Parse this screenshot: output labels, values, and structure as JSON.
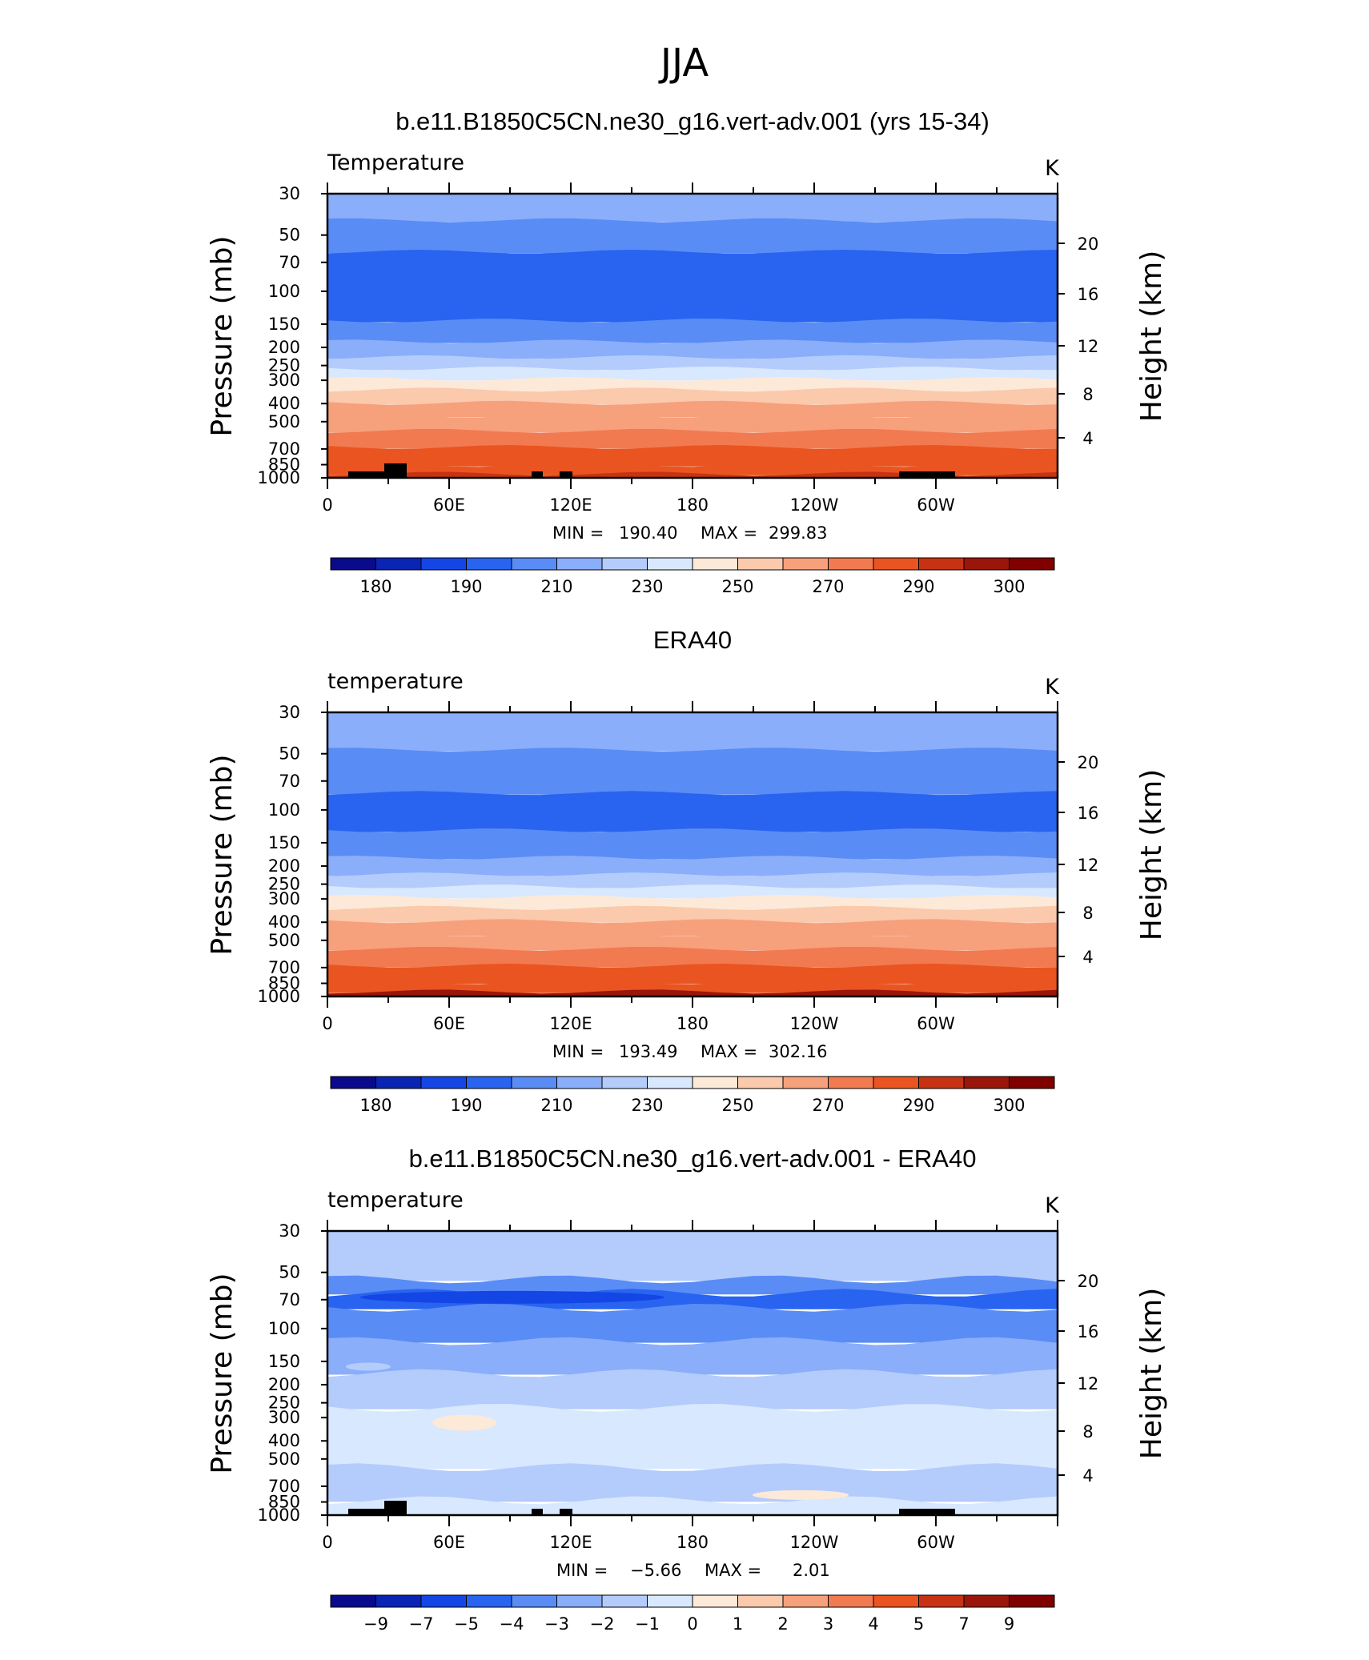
{
  "figure": {
    "title": "JJA"
  },
  "colors": {
    "temperature_palette": [
      "#0a0a8c",
      "#0a24b4",
      "#1446e6",
      "#2864f0",
      "#5a8cf6",
      "#8aaefa",
      "#b4ccfc",
      "#d8e8fe",
      "#fde9d8",
      "#fbc9ac",
      "#f7a07c",
      "#f27a50",
      "#ea5420",
      "#c83214",
      "#9a160a",
      "#800000"
    ],
    "frame": "#000000",
    "land_mask": "#000000"
  },
  "chart_data": [
    {
      "type": "heatmap",
      "title": "b.e11.B1850C5CN.ne30_g16.vert-adv.001 (yrs 15-34)",
      "left_string": "Temperature",
      "right_string": "K",
      "ylabel": "Pressure  (mb)",
      "ylabel_right": "Height  (km)",
      "y_scale": "log",
      "y_ticks": [
        "30",
        "50",
        "70",
        "100",
        "150",
        "200",
        "250",
        "300",
        "400",
        "500",
        "700",
        "850",
        "1000"
      ],
      "y_right_ticks": [
        "20",
        "16",
        "12",
        "8",
        "4"
      ],
      "x_ticks": [
        "0",
        "60E",
        "120E",
        "180",
        "120W",
        "60W"
      ],
      "stats": {
        "min_label": "MIN  =",
        "min": "190.40",
        "max_label": "MAX  =",
        "max": "299.83"
      },
      "colorbar_labels": [
        "180",
        "190",
        "210",
        "230",
        "250",
        "270",
        "290",
        "300"
      ],
      "levels": [
        {
          "p_top": 30,
          "p_bottom": 42,
          "value": 218
        },
        {
          "p_top": 42,
          "p_bottom": 62,
          "value": 207
        },
        {
          "p_top": 62,
          "p_bottom": 145,
          "value": 197
        },
        {
          "p_top": 145,
          "p_bottom": 188,
          "value": 205
        },
        {
          "p_top": 188,
          "p_bottom": 228,
          "value": 215
        },
        {
          "p_top": 228,
          "p_bottom": 262,
          "value": 225
        },
        {
          "p_top": 262,
          "p_bottom": 298,
          "value": 235
        },
        {
          "p_top": 298,
          "p_bottom": 340,
          "value": 245
        },
        {
          "p_top": 340,
          "p_bottom": 400,
          "value": 255
        },
        {
          "p_top": 400,
          "p_bottom": 470,
          "value": 262
        },
        {
          "p_top": 470,
          "p_bottom": 565,
          "value": 268
        },
        {
          "p_top": 565,
          "p_bottom": 690,
          "value": 275
        },
        {
          "p_top": 690,
          "p_bottom": 860,
          "value": 283
        },
        {
          "p_top": 860,
          "p_bottom": 960,
          "value": 289
        },
        {
          "p_top": 960,
          "p_bottom": 1000,
          "value": 293
        }
      ],
      "topography": true
    },
    {
      "type": "heatmap",
      "title": "ERA40",
      "left_string": "temperature",
      "right_string": "K",
      "ylabel": "Pressure  (mb)",
      "ylabel_right": "Height  (km)",
      "y_scale": "log",
      "y_ticks": [
        "30",
        "50",
        "70",
        "100",
        "150",
        "200",
        "250",
        "300",
        "400",
        "500",
        "700",
        "850",
        "1000"
      ],
      "y_right_ticks": [
        "20",
        "16",
        "12",
        "8",
        "4"
      ],
      "x_ticks": [
        "0",
        "60E",
        "120E",
        "180",
        "120W",
        "60W"
      ],
      "stats": {
        "min_label": "MIN  =",
        "min": "193.49",
        "max_label": "MAX  =",
        "max": "302.16"
      },
      "colorbar_labels": [
        "180",
        "190",
        "210",
        "230",
        "250",
        "270",
        "290",
        "300"
      ],
      "levels": [
        {
          "p_top": 30,
          "p_bottom": 48,
          "value": 215
        },
        {
          "p_top": 48,
          "p_bottom": 82,
          "value": 205
        },
        {
          "p_top": 82,
          "p_bottom": 130,
          "value": 197
        },
        {
          "p_top": 130,
          "p_bottom": 182,
          "value": 205
        },
        {
          "p_top": 182,
          "p_bottom": 224,
          "value": 215
        },
        {
          "p_top": 224,
          "p_bottom": 260,
          "value": 225
        },
        {
          "p_top": 260,
          "p_bottom": 295,
          "value": 235
        },
        {
          "p_top": 295,
          "p_bottom": 338,
          "value": 245
        },
        {
          "p_top": 338,
          "p_bottom": 398,
          "value": 255
        },
        {
          "p_top": 398,
          "p_bottom": 468,
          "value": 262
        },
        {
          "p_top": 468,
          "p_bottom": 560,
          "value": 268
        },
        {
          "p_top": 560,
          "p_bottom": 690,
          "value": 275
        },
        {
          "p_top": 690,
          "p_bottom": 850,
          "value": 283
        },
        {
          "p_top": 850,
          "p_bottom": 950,
          "value": 289
        },
        {
          "p_top": 950,
          "p_bottom": 1000,
          "value": 295
        }
      ],
      "topography": false
    },
    {
      "type": "heatmap",
      "title": "b.e11.B1850C5CN.ne30_g16.vert-adv.001 - ERA40",
      "left_string": "temperature",
      "right_string": "K",
      "ylabel": "Pressure  (mb)",
      "ylabel_right": "Height  (km)",
      "y_scale": "log",
      "y_ticks": [
        "30",
        "50",
        "70",
        "100",
        "150",
        "200",
        "250",
        "300",
        "400",
        "500",
        "700",
        "850",
        "1000"
      ],
      "y_right_ticks": [
        "20",
        "16",
        "12",
        "8",
        "4"
      ],
      "x_ticks": [
        "0",
        "60E",
        "120E",
        "180",
        "120W",
        "60W"
      ],
      "stats": {
        "min_label": "MIN  =",
        "min": "−5.66",
        "max_label": "MAX  =",
        "max": "2.01"
      },
      "colorbar_labels": [
        "−9",
        "−7",
        "−5",
        "−4",
        "−3",
        "−2",
        "−1",
        "0",
        "1",
        "2",
        "3",
        "4",
        "5",
        "7",
        "9"
      ],
      "levels": [
        {
          "p_top": 30,
          "p_bottom": 55,
          "value": -1.5
        },
        {
          "p_top": 55,
          "p_bottom": 65,
          "value": -3.5
        },
        {
          "p_top": 65,
          "p_bottom": 78,
          "value": -4.5
        },
        {
          "p_top": 78,
          "p_bottom": 118,
          "value": -3.5
        },
        {
          "p_top": 118,
          "p_bottom": 175,
          "value": -2.5
        },
        {
          "p_top": 175,
          "p_bottom": 268,
          "value": -1.5
        },
        {
          "p_top": 268,
          "p_bottom": 560,
          "value": -0.5
        },
        {
          "p_top": 560,
          "p_bottom": 840,
          "value": -1.5
        },
        {
          "p_top": 840,
          "p_bottom": 1000,
          "value": -0.5
        }
      ],
      "topography": true
    }
  ]
}
